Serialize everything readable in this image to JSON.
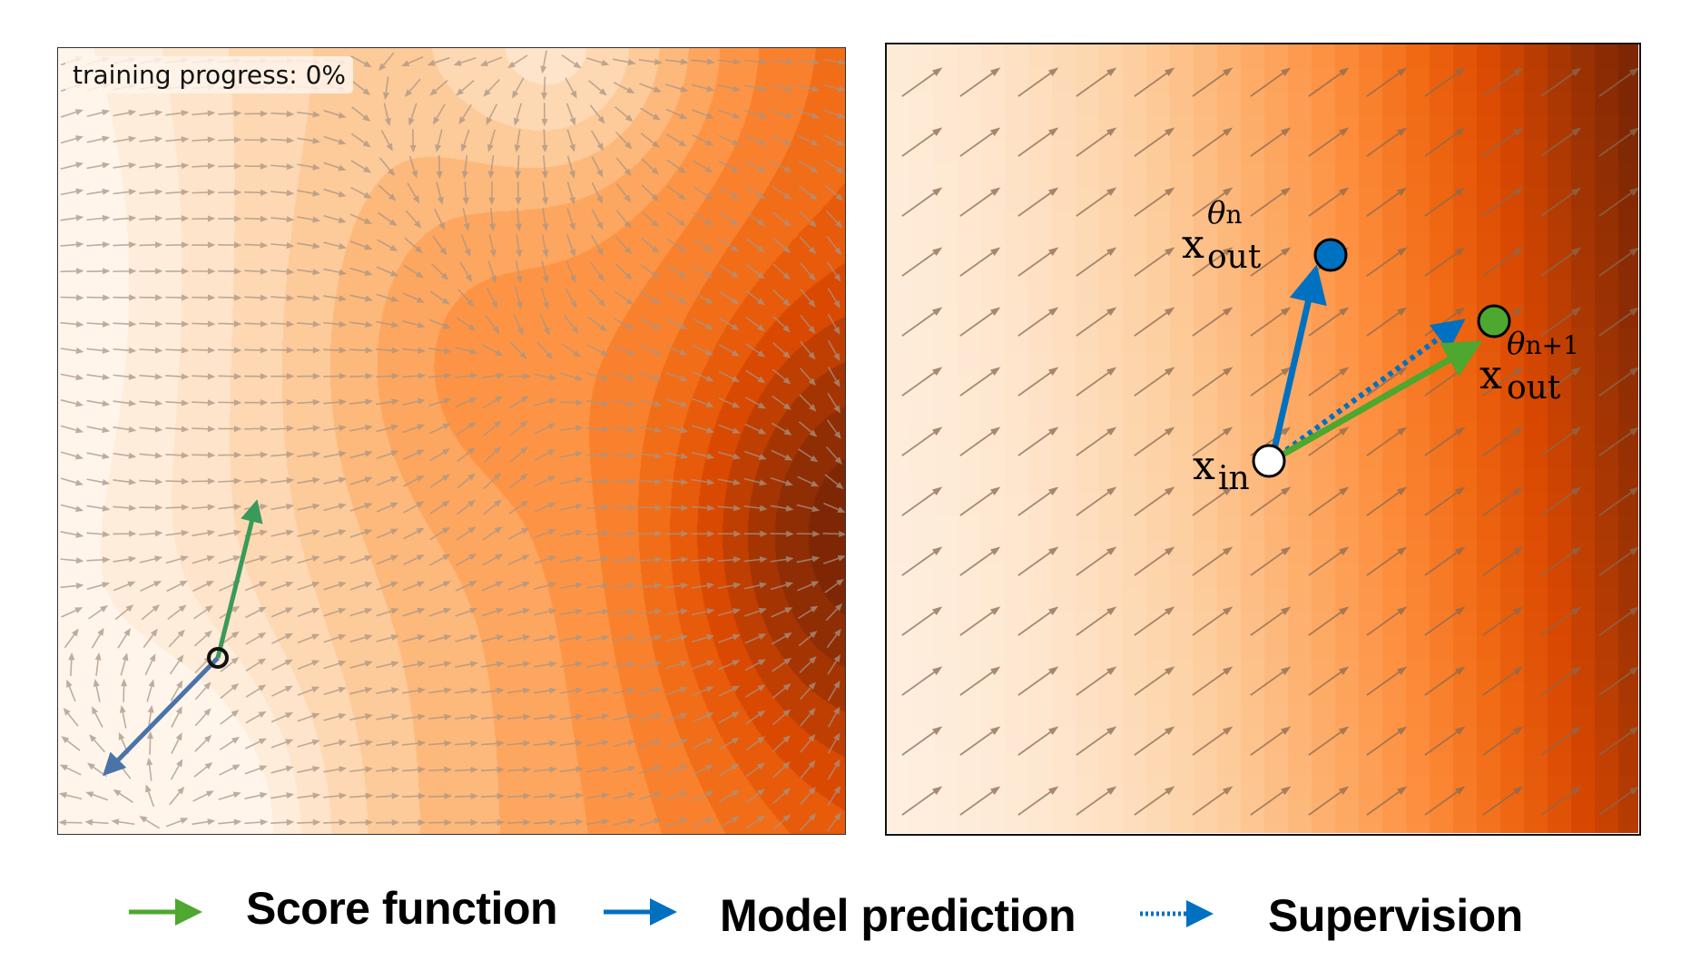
{
  "left_panel": {
    "progress_label": "training progress: 0%",
    "colormap": [
      "#fff5eb",
      "#fee6ce",
      "#fdd0a2",
      "#fdae6b",
      "#fd8d3c",
      "#f16913",
      "#d94801",
      "#a63603",
      "#7f2704"
    ],
    "score_arrow_color": "#3a9a5a",
    "prediction_arrow_color": "#4a74a8",
    "quiver_color": "#a89484"
  },
  "right_panel": {
    "x_out_n": {
      "base": "x",
      "sub": "out",
      "sup_theta": "θ",
      "sup_index": "n"
    },
    "x_out_n1": {
      "base": "x",
      "sub": "out",
      "sup_theta": "θ",
      "sup_index": "n+1"
    },
    "x_in": {
      "base": "x",
      "sub": "in"
    },
    "prediction_color": "#0070c0",
    "score_color": "#4ea72e",
    "quiver_color": "#8a6a50"
  },
  "legend": {
    "items": [
      {
        "label": "Score function",
        "color": "#4ea72e",
        "style": "solid"
      },
      {
        "label": "Model prediction",
        "color": "#0070c0",
        "style": "solid"
      },
      {
        "label": "Supervision",
        "color": "#0070c0",
        "style": "dotted"
      }
    ]
  }
}
